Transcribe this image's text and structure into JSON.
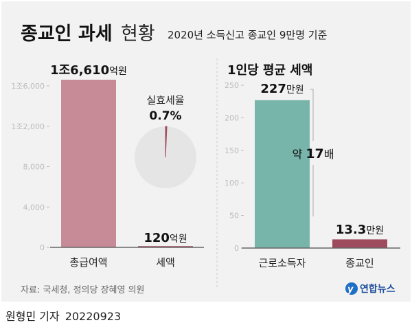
{
  "title_bold": "종교인 과세",
  "title_light": "현황",
  "subtitle": "2020년 소득신고 종교인 9만명 기준",
  "source": "자료: 국세청, 정의당 장혜영 의원",
  "logo": "연합뉴스",
  "credit": {
    "reporter": "원형민 기자",
    "date": "20220923"
  },
  "colors": {
    "pink": "#c78a97",
    "teal": "#77b5aa",
    "darkred": "#9e4b5e",
    "pie_bg": "#e5e5e5"
  },
  "chart_data": [
    {
      "type": "bar",
      "title": "",
      "unit": "억원",
      "categories": [
        "총급여액",
        "세액"
      ],
      "values": [
        16610,
        120
      ],
      "value_labels": [
        {
          "num": "1조6,610",
          "unit": "억원"
        },
        {
          "num": "120",
          "unit": "억원"
        }
      ],
      "yticks": [
        0,
        4000,
        8000,
        12000,
        16000
      ],
      "ytick_labels": [
        "0",
        "4,000",
        "8,000",
        "1조2,000",
        "1조6,000"
      ],
      "ylim": [
        0,
        16000
      ]
    },
    {
      "type": "pie",
      "title": "실효세율",
      "value_label": "0.7%",
      "values": [
        0.7,
        99.3
      ]
    },
    {
      "type": "bar",
      "title": "1인당 평균 세액",
      "unit": "만원",
      "categories": [
        "근로소득자",
        "종교인"
      ],
      "values": [
        227,
        13.3
      ],
      "value_labels": [
        {
          "num": "227",
          "unit": "만원"
        },
        {
          "num": "13.3",
          "unit": "만원"
        }
      ],
      "yticks": [
        0,
        50,
        100,
        150,
        200,
        250
      ],
      "ytick_labels": [
        "0",
        "50",
        "100",
        "150",
        "200",
        "250"
      ],
      "ylim": [
        0,
        250
      ],
      "annotation": {
        "pre": "약 ",
        "num": "17",
        "post": "배"
      }
    }
  ]
}
